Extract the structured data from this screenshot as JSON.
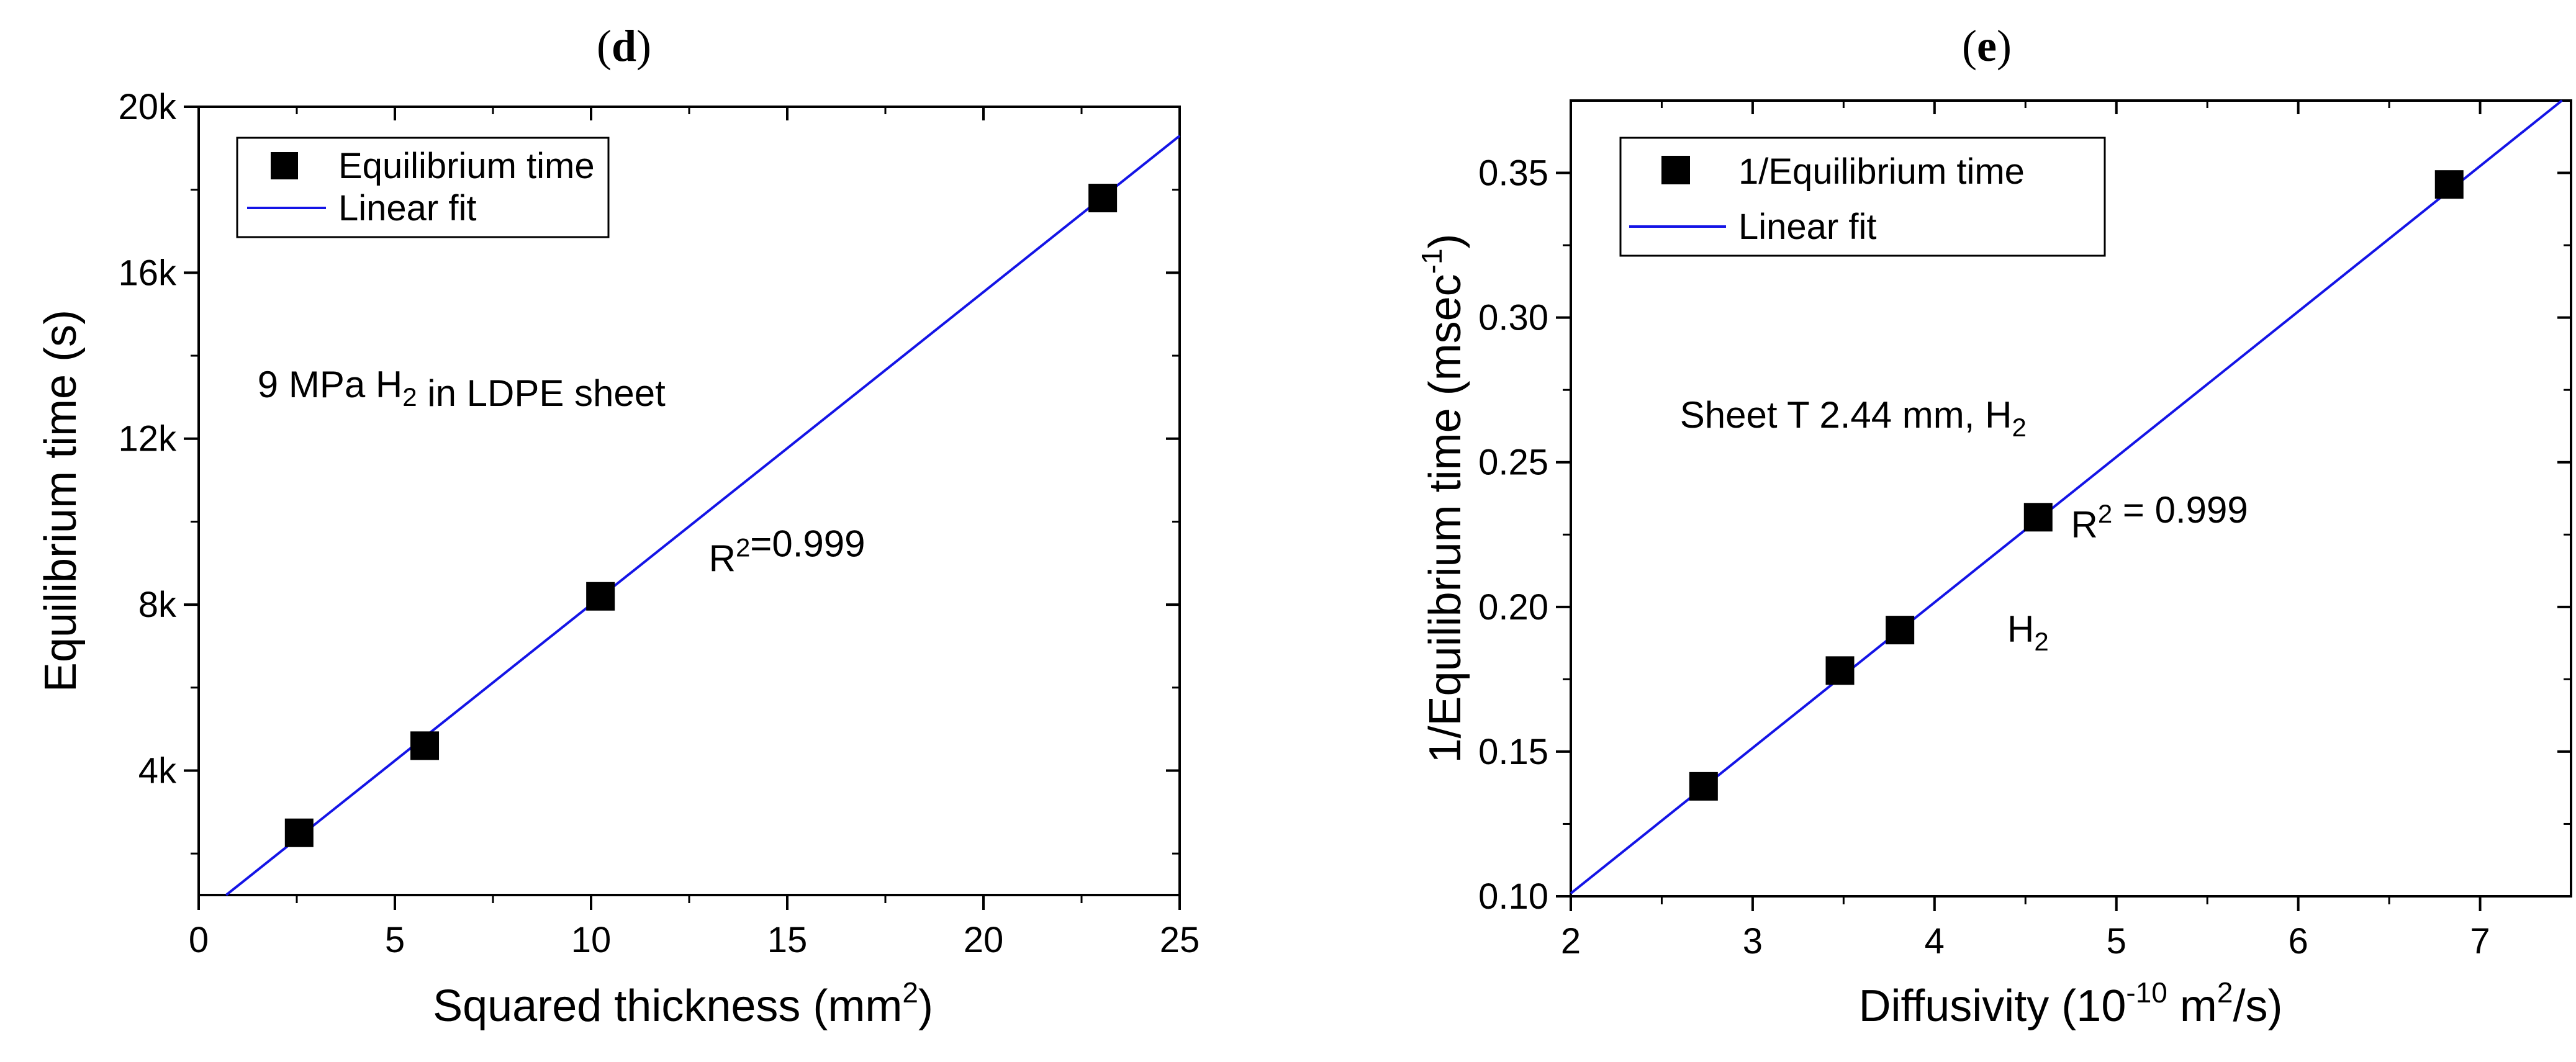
{
  "colors": {
    "marker": "#000000",
    "fit_line": "#1414e6",
    "axis": "#000000"
  },
  "chart_data": [
    {
      "type": "scatter",
      "panel_letter": "d",
      "xlabel_main": "Squared thickness (mm",
      "xlabel_sup": "2",
      "xlabel_end": ")",
      "ylabel": "Equilibrium time (s)",
      "xlim": [
        0,
        25
      ],
      "ylim": [
        1000,
        20000
      ],
      "x_ticks": [
        0,
        5,
        10,
        15,
        20,
        25
      ],
      "x_tick_labels": [
        "0",
        "5",
        "10",
        "15",
        "20",
        "25"
      ],
      "y_ticks": [
        4000,
        8000,
        12000,
        16000,
        20000
      ],
      "y_tick_labels": [
        "4k",
        "8k",
        "12k",
        "16k",
        "20k"
      ],
      "x_minor_ticks": [
        2.5,
        7.5,
        12.5,
        17.5,
        22.5
      ],
      "y_minor_ticks": [
        2000,
        6000,
        10000,
        14000,
        18000
      ],
      "series": [
        {
          "name": "Equilibrium time",
          "kind": "markers",
          "x": [
            2.56,
            5.76,
            10.24,
            23.04
          ],
          "y": [
            2500,
            4600,
            8200,
            17800
          ]
        },
        {
          "name": "Linear fit",
          "kind": "line",
          "x": [
            0.7,
            25
          ],
          "y": [
            1000,
            19300
          ]
        }
      ],
      "annotations": [
        {
          "parts": [
            {
              "text": "9 MPa H"
            },
            {
              "text": "2",
              "sub": true
            },
            {
              "text": " in LDPE sheet"
            }
          ],
          "x": 1.5,
          "y": 13000
        },
        {
          "parts": [
            {
              "text": "R"
            },
            {
              "text": "2",
              "sup": true
            },
            {
              "text": "=0.999"
            }
          ],
          "x": 13.0,
          "y": 8800
        }
      ]
    },
    {
      "type": "scatter",
      "panel_letter": "e",
      "xlabel_main": "Diffusivity (10",
      "xlabel_sup": "-10",
      "xlabel_mid": " m",
      "xlabel_sup2": "2",
      "xlabel_end": "/s)",
      "ylabel_main": "1/Equilibrium time (msec",
      "ylabel_sup": "-1",
      "ylabel_end": ")",
      "xlim": [
        2,
        7.5
      ],
      "ylim": [
        0.1,
        0.375
      ],
      "x_ticks": [
        2,
        3,
        4,
        5,
        6,
        7
      ],
      "x_tick_labels": [
        "2",
        "3",
        "4",
        "5",
        "6",
        "7"
      ],
      "y_ticks": [
        0.1,
        0.15,
        0.2,
        0.25,
        0.3,
        0.35
      ],
      "y_tick_labels": [
        "0.10",
        "0.15",
        "0.20",
        "0.25",
        "0.30",
        "0.35"
      ],
      "x_minor_ticks": [
        2.5,
        3.5,
        4.5,
        5.5,
        6.5
      ],
      "y_minor_ticks": [
        0.125,
        0.175,
        0.225,
        0.275,
        0.325
      ],
      "series": [
        {
          "name": "1/Equilibrium time",
          "kind": "markers",
          "x": [
            2.73,
            3.48,
            3.81,
            4.57,
            6.83
          ],
          "y": [
            0.138,
            0.178,
            0.192,
            0.231,
            0.346
          ]
        },
        {
          "name": "Linear fit",
          "kind": "line",
          "x": [
            2.0,
            7.45
          ],
          "y": [
            0.101,
            0.375
          ]
        }
      ],
      "annotations": [
        {
          "parts": [
            {
              "text": "Sheet T 2.44 mm, H"
            },
            {
              "text": "2",
              "sub": true
            }
          ],
          "x": 2.6,
          "y": 0.262
        },
        {
          "parts": [
            {
              "text": "R"
            },
            {
              "text": "2",
              "sup": true
            },
            {
              "text": " = 0.999"
            }
          ],
          "x": 4.75,
          "y": 0.224
        },
        {
          "parts": [
            {
              "text": "H"
            },
            {
              "text": "2",
              "sub": true
            }
          ],
          "x": 4.4,
          "y": 0.188
        }
      ]
    }
  ]
}
